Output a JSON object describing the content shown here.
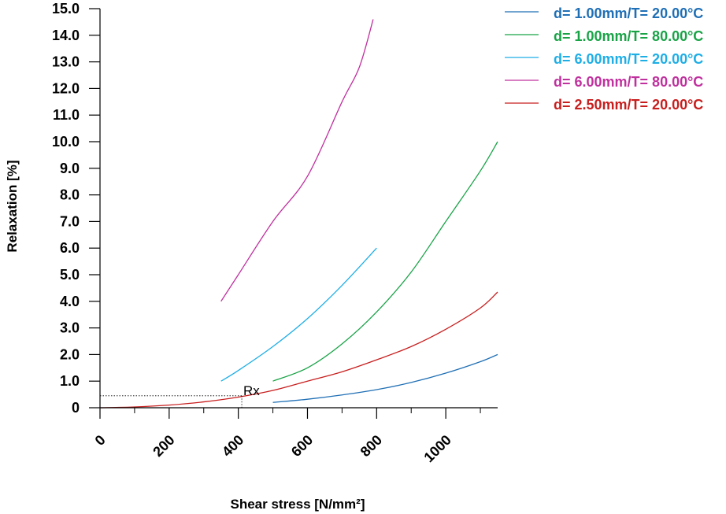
{
  "chart_data": {
    "type": "line",
    "xlabel": "Shear stress [N/mm²]",
    "ylabel": "Relaxation [%]",
    "xlim": [
      0,
      1150
    ],
    "ylim": [
      0,
      15
    ],
    "xticks": [
      0,
      200,
      400,
      600,
      800,
      1000
    ],
    "x_minor_ticks": [
      100,
      300,
      500,
      700,
      900,
      1100
    ],
    "x_tick_labels": [
      "0",
      "200",
      "400",
      "600",
      "800",
      "1000"
    ],
    "yticks": [
      0,
      1,
      2,
      3,
      4,
      5,
      6,
      7,
      8,
      9,
      10,
      11,
      12,
      13,
      14,
      15
    ],
    "y_tick_labels": [
      "0",
      "1.0",
      "2.0",
      "3.0",
      "4.0",
      "5.0",
      "6.0",
      "7.0",
      "8.0",
      "9.0",
      "10.0",
      "11.0",
      "12.0",
      "13.0",
      "14.0",
      "15.0"
    ],
    "grid": false,
    "legend_position": "top-right",
    "series": [
      {
        "name": "d=  1.00mm/T= 20.00°C",
        "color": "#1f6fb5",
        "x": [
          500,
          600,
          700,
          800,
          900,
          1000,
          1100,
          1150
        ],
        "y": [
          0.2,
          0.32,
          0.48,
          0.68,
          0.95,
          1.3,
          1.73,
          2.0
        ]
      },
      {
        "name": "d=  1.00mm/T= 80.00°C",
        "color": "#19a347",
        "x": [
          500,
          600,
          700,
          800,
          900,
          1000,
          1100,
          1150
        ],
        "y": [
          1.0,
          1.5,
          2.4,
          3.6,
          5.1,
          7.0,
          8.9,
          10.0
        ]
      },
      {
        "name": "d=  6.00mm/T= 20.00°C",
        "color": "#1eaee6",
        "x": [
          350,
          400,
          500,
          600,
          700,
          800
        ],
        "y": [
          1.0,
          1.4,
          2.3,
          3.35,
          4.6,
          6.0
        ]
      },
      {
        "name": "d=  6.00mm/T= 80.00°C",
        "color": "#c0309e",
        "x": [
          350,
          400,
          500,
          600,
          700,
          750,
          790
        ],
        "y": [
          4.0,
          5.0,
          7.0,
          8.7,
          11.5,
          12.8,
          14.6
        ]
      },
      {
        "name": "d=  2.50mm/T= 20.00°C",
        "color": "#c81e1e",
        "x": [
          0,
          100,
          200,
          300,
          400,
          500,
          600,
          700,
          800,
          900,
          1000,
          1100,
          1150
        ],
        "y": [
          0,
          0.03,
          0.1,
          0.22,
          0.4,
          0.65,
          1.0,
          1.35,
          1.8,
          2.3,
          2.95,
          3.75,
          4.35
        ]
      }
    ],
    "annotations": [
      {
        "text": "Rx",
        "x": 410,
        "y": 0.45
      }
    ]
  }
}
